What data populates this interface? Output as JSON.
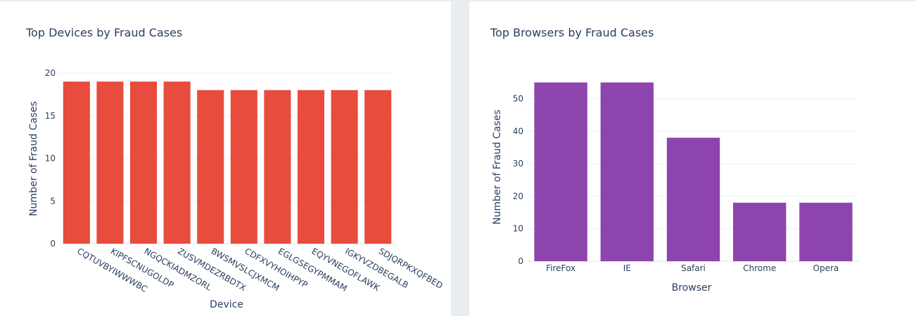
{
  "chart_data": [
    {
      "type": "bar",
      "title": "Top Devices by Fraud Cases",
      "xlabel": "Device",
      "ylabel": "Number of Fraud Cases",
      "categories": [
        "CQTUVBYIWWWBC",
        "KIPFSCNUGOLDP",
        "NGQCKIADMZORL",
        "ZUSVMDEZRBDTX",
        "BWSMVSLCJXMCM",
        "CDFXVYHOIHPYP",
        "EGLGSEGYPMMAM",
        "EQYVNEGOFLAWK",
        "IGKYVZDBEGALB",
        "SDJQRPKXQFBED"
      ],
      "values": [
        19,
        19,
        19,
        19,
        18,
        18,
        18,
        18,
        18,
        18
      ],
      "ylim": [
        0,
        20
      ],
      "yticks": [
        0,
        5,
        10,
        15,
        20
      ],
      "color": "#e84c3d",
      "grid": true
    },
    {
      "type": "bar",
      "title": "Top Browsers by Fraud Cases",
      "xlabel": "Browser",
      "ylabel": "Number of Fraud Cases",
      "categories": [
        "FireFox",
        "IE",
        "Safari",
        "Chrome",
        "Opera"
      ],
      "values": [
        55,
        55,
        38,
        18,
        18
      ],
      "ylim": [
        0,
        57.9
      ],
      "yticks": [
        0,
        10,
        20,
        30,
        40,
        50
      ],
      "color": "#8e44ad",
      "grid": true
    }
  ]
}
